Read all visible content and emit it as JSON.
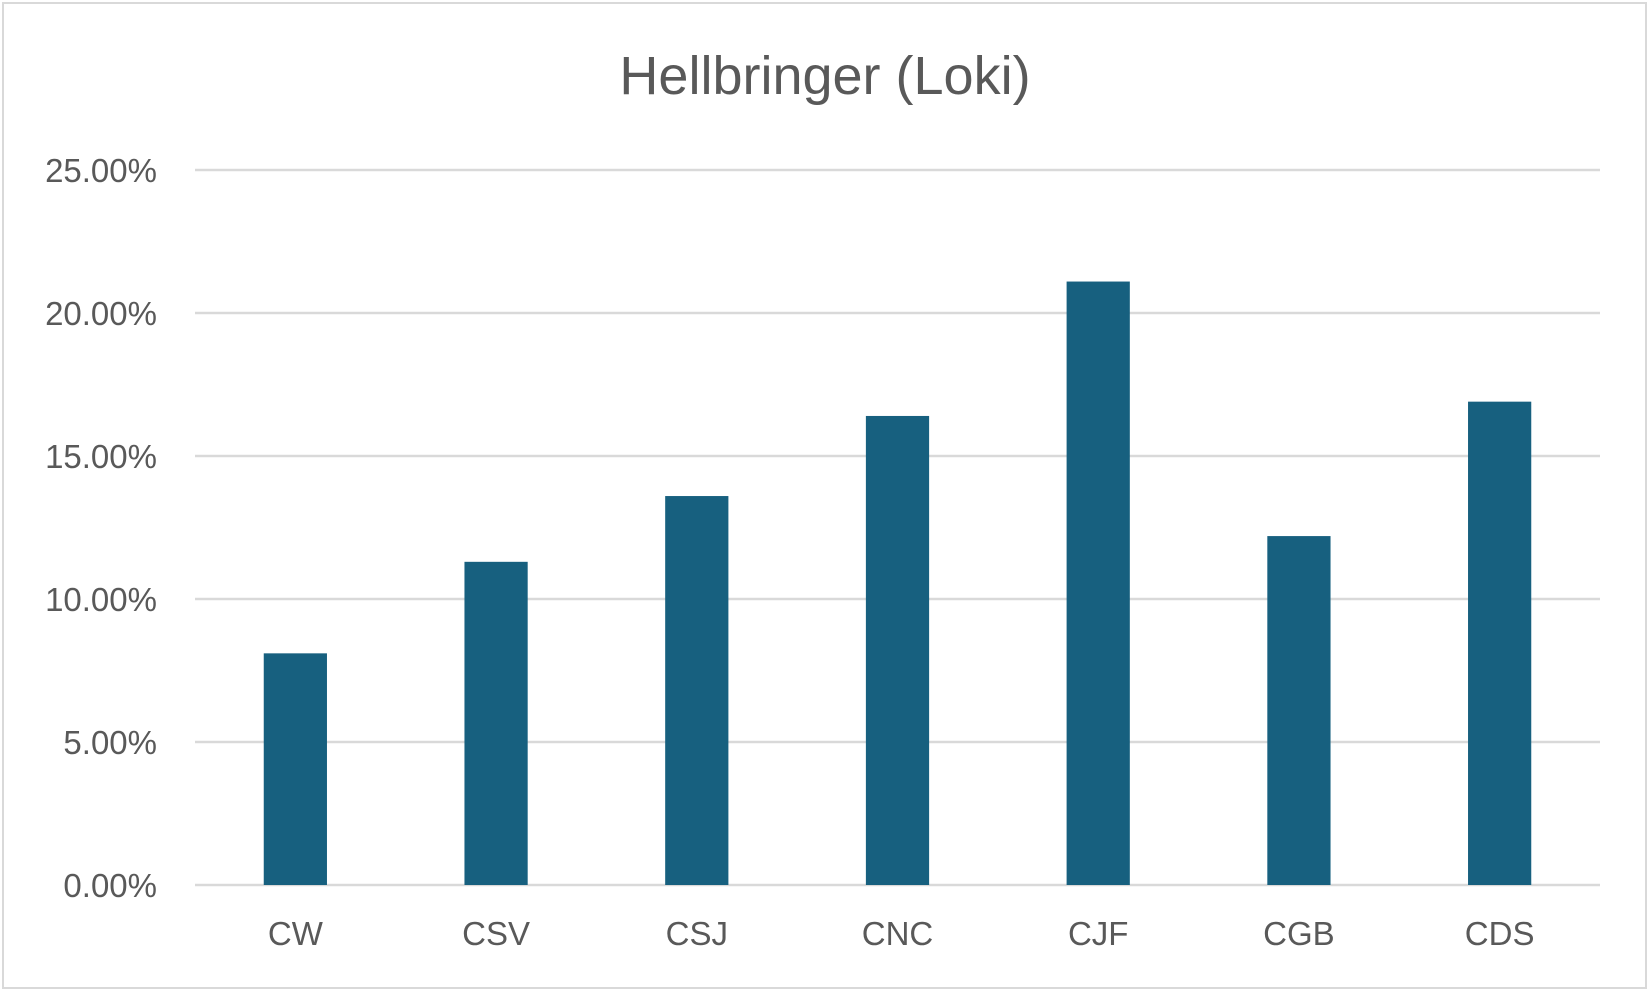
{
  "chart_data": {
    "type": "bar",
    "title": "Hellbringer (Loki)",
    "xlabel": "",
    "ylabel": "",
    "categories": [
      "CW",
      "CSV",
      "CSJ",
      "CNC",
      "CJF",
      "CGB",
      "CDS"
    ],
    "series": [
      {
        "values": [
          8.1,
          11.3,
          13.6,
          16.4,
          21.1,
          12.2,
          16.9
        ]
      }
    ],
    "ylim": [
      0,
      25
    ],
    "yticks": [
      "0.00%",
      "5.00%",
      "10.00%",
      "15.00%",
      "20.00%",
      "25.00%"
    ],
    "grid": true,
    "legend": "none",
    "bar_color": "#17607f"
  }
}
